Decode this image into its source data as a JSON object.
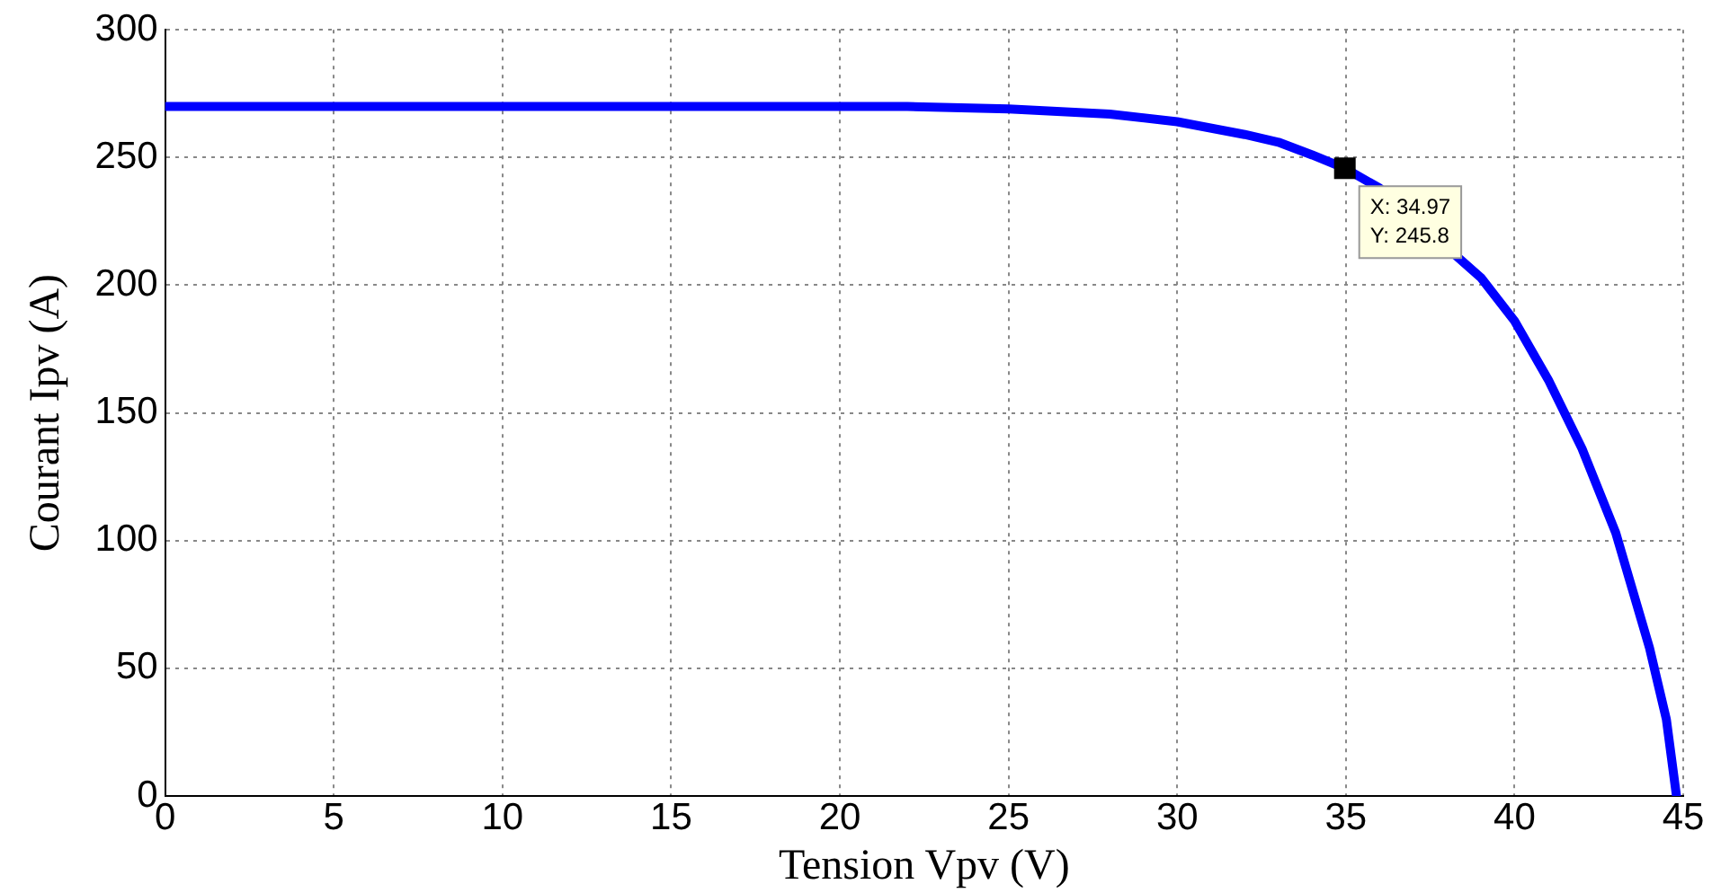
{
  "chart_data": {
    "type": "line",
    "xlabel": "Tension Vpv (V)",
    "ylabel": "Courant Ipv (A)",
    "x": [
      0,
      5,
      10,
      15,
      20,
      22,
      25,
      28,
      30,
      32,
      33,
      34,
      34.97,
      36,
      37,
      38,
      39,
      40,
      41,
      42,
      43,
      44,
      44.5,
      44.8
    ],
    "series": [
      {
        "color": "#0000ff",
        "values": [
          270,
          270,
          270,
          270,
          270,
          270,
          269,
          267,
          264,
          259,
          256,
          251,
          245.8,
          238,
          null,
          null,
          203,
          186,
          163,
          136,
          103,
          58,
          30,
          0
        ]
      }
    ],
    "xlim": [
      0,
      45
    ],
    "xticks": [
      0,
      5,
      10,
      15,
      20,
      25,
      30,
      35,
      40,
      45
    ],
    "ylim": [
      0,
      300
    ],
    "yticks": [
      0,
      50,
      100,
      150,
      200,
      250,
      300
    ],
    "grid": true,
    "legend": false,
    "marker": "none",
    "line_style": "solid",
    "annotations": [
      {
        "text": "X: 34.97\nY: 245.8",
        "x": 34.97,
        "y": 245.8
      }
    ]
  }
}
